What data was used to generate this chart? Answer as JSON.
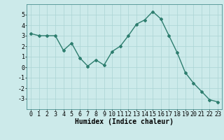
{
  "x": [
    0,
    1,
    2,
    3,
    4,
    5,
    6,
    7,
    8,
    9,
    10,
    11,
    12,
    13,
    14,
    15,
    16,
    17,
    18,
    19,
    20,
    21,
    22,
    23
  ],
  "y": [
    3.2,
    3.0,
    3.0,
    3.0,
    1.6,
    2.3,
    0.9,
    0.1,
    0.7,
    0.2,
    1.5,
    2.0,
    3.0,
    4.1,
    4.5,
    5.3,
    4.6,
    3.0,
    1.4,
    -0.5,
    -1.5,
    -2.3,
    -3.1,
    -3.3
  ],
  "line_color": "#2d7d6e",
  "marker": "D",
  "markersize": 2.0,
  "linewidth": 1.0,
  "bg_color": "#cceaea",
  "grid_color": "#aad4d4",
  "xlabel": "Humidex (Indice chaleur)",
  "xlabel_fontsize": 7,
  "tick_fontsize": 6,
  "ylim": [
    -4,
    6
  ],
  "xlim": [
    -0.5,
    23.5
  ],
  "yticks": [
    -3,
    -2,
    -1,
    0,
    1,
    2,
    3,
    4,
    5
  ],
  "xticks": [
    0,
    1,
    2,
    3,
    4,
    5,
    6,
    7,
    8,
    9,
    10,
    11,
    12,
    13,
    14,
    15,
    16,
    17,
    18,
    19,
    20,
    21,
    22,
    23
  ]
}
